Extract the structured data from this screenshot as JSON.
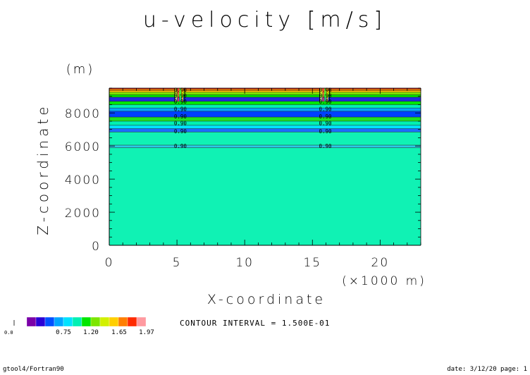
{
  "chart_data": {
    "type": "heatmap",
    "title": "u-velocity [m/s]",
    "xlabel": "X-coordinate",
    "xunit": "(×1000 m)",
    "ylabel": "Z-coordinate",
    "yunit": "(m)",
    "xlim": [
      0,
      23
    ],
    "ylim": [
      0,
      9500
    ],
    "x_ticks": [
      0,
      5,
      10,
      15,
      20
    ],
    "y_ticks": [
      0,
      2000,
      4000,
      6000,
      8000
    ],
    "contour_interval": "CONTOUR INTERVAL = 1.500E-01",
    "contour_label": "0.90",
    "contour_label_heights": [
      6000,
      6900,
      7400,
      7800,
      8250,
      8700,
      9050,
      9400
    ],
    "perturbation_x": [
      5.2,
      15.9
    ],
    "colorbar": {
      "tick_labels": [
        "0.75",
        "1.20",
        "1.65",
        "1.97"
      ],
      "min_label": "0.0",
      "colors": [
        "#7b00a8",
        "#2a00d6",
        "#0050ff",
        "#00a6ff",
        "#00e2ff",
        "#00f0b4",
        "#00e600",
        "#7ce600",
        "#d2f000",
        "#ffcf00",
        "#ff7e00",
        "#ff2a00",
        "#ff9aa0"
      ]
    },
    "bands": [
      {
        "z0": 0,
        "z1": 5900,
        "color": "#10f2b4"
      },
      {
        "z0": 5900,
        "z1": 6050,
        "color": "#2ec8e8"
      },
      {
        "z0": 6050,
        "z1": 6850,
        "color": "#10f2b4"
      },
      {
        "z0": 6850,
        "z1": 7050,
        "color": "#1e6cff"
      },
      {
        "z0": 7050,
        "z1": 7250,
        "color": "#00e2ff"
      },
      {
        "z0": 7250,
        "z1": 7500,
        "color": "#00f0b4"
      },
      {
        "z0": 7500,
        "z1": 7750,
        "color": "#20e020"
      },
      {
        "z0": 7750,
        "z1": 8100,
        "color": "#0040ff"
      },
      {
        "z0": 8100,
        "z1": 8300,
        "color": "#00a6ff"
      },
      {
        "z0": 8300,
        "z1": 8500,
        "color": "#00f0b4"
      },
      {
        "z0": 8500,
        "z1": 8700,
        "color": "#00e600"
      },
      {
        "z0": 8700,
        "z1": 8950,
        "color": "#1f2be0"
      },
      {
        "z0": 8950,
        "z1": 9100,
        "color": "#00e600"
      },
      {
        "z0": 9100,
        "z1": 9250,
        "color": "#7ce600"
      },
      {
        "z0": 9250,
        "z1": 9350,
        "color": "#ffcf00"
      },
      {
        "z0": 9350,
        "z1": 9450,
        "color": "#ff7e00"
      },
      {
        "z0": 9450,
        "z1": 9500,
        "color": "#e82020"
      }
    ]
  },
  "footer": {
    "left": "gtool4/Fortran90",
    "right": "date: 3/12/20 page: 1"
  }
}
